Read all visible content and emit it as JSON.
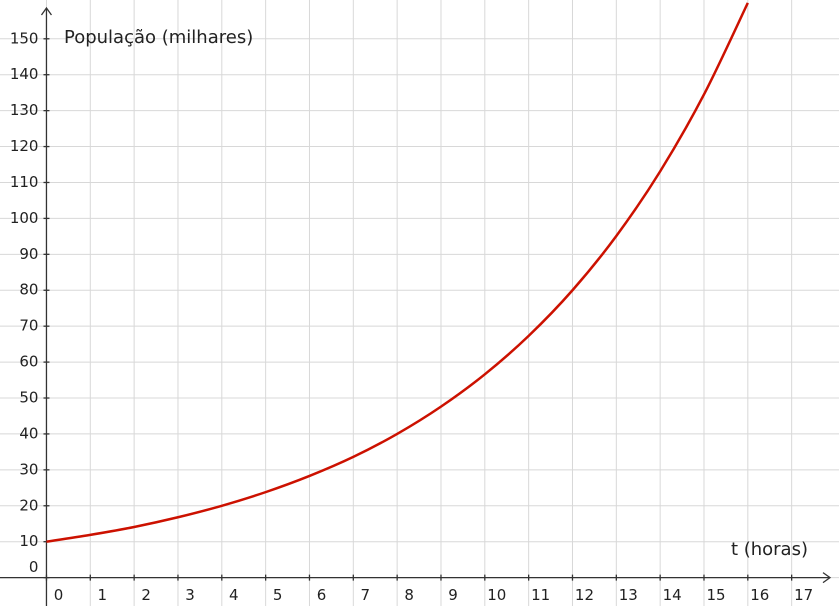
{
  "chart_data": {
    "type": "line",
    "x_label": "t (horas)",
    "y_label": "População (milhares)",
    "x": [
      0,
      1,
      2,
      3,
      4,
      5,
      6,
      7,
      8,
      9,
      10,
      11,
      12,
      13,
      14,
      15,
      16
    ],
    "series": [
      {
        "color": "#cc1100",
        "values": [
          10,
          11.9,
          14.1,
          16.8,
          20,
          23.8,
          28.3,
          33.6,
          40,
          47.6,
          56.6,
          67.3,
          80,
          95.1,
          113.1,
          134.5,
          160
        ]
      }
    ],
    "xlim": [
      -1.06,
      18.08
    ],
    "ylim": [
      -7.9,
      160.8
    ],
    "xticks": [
      0,
      1,
      2,
      3,
      4,
      5,
      6,
      7,
      8,
      9,
      10,
      11,
      12,
      13,
      14,
      15,
      16,
      17
    ],
    "yticks": [
      0,
      10,
      20,
      30,
      40,
      50,
      60,
      70,
      80,
      90,
      100,
      110,
      120,
      130,
      140,
      150
    ],
    "grid": true
  }
}
